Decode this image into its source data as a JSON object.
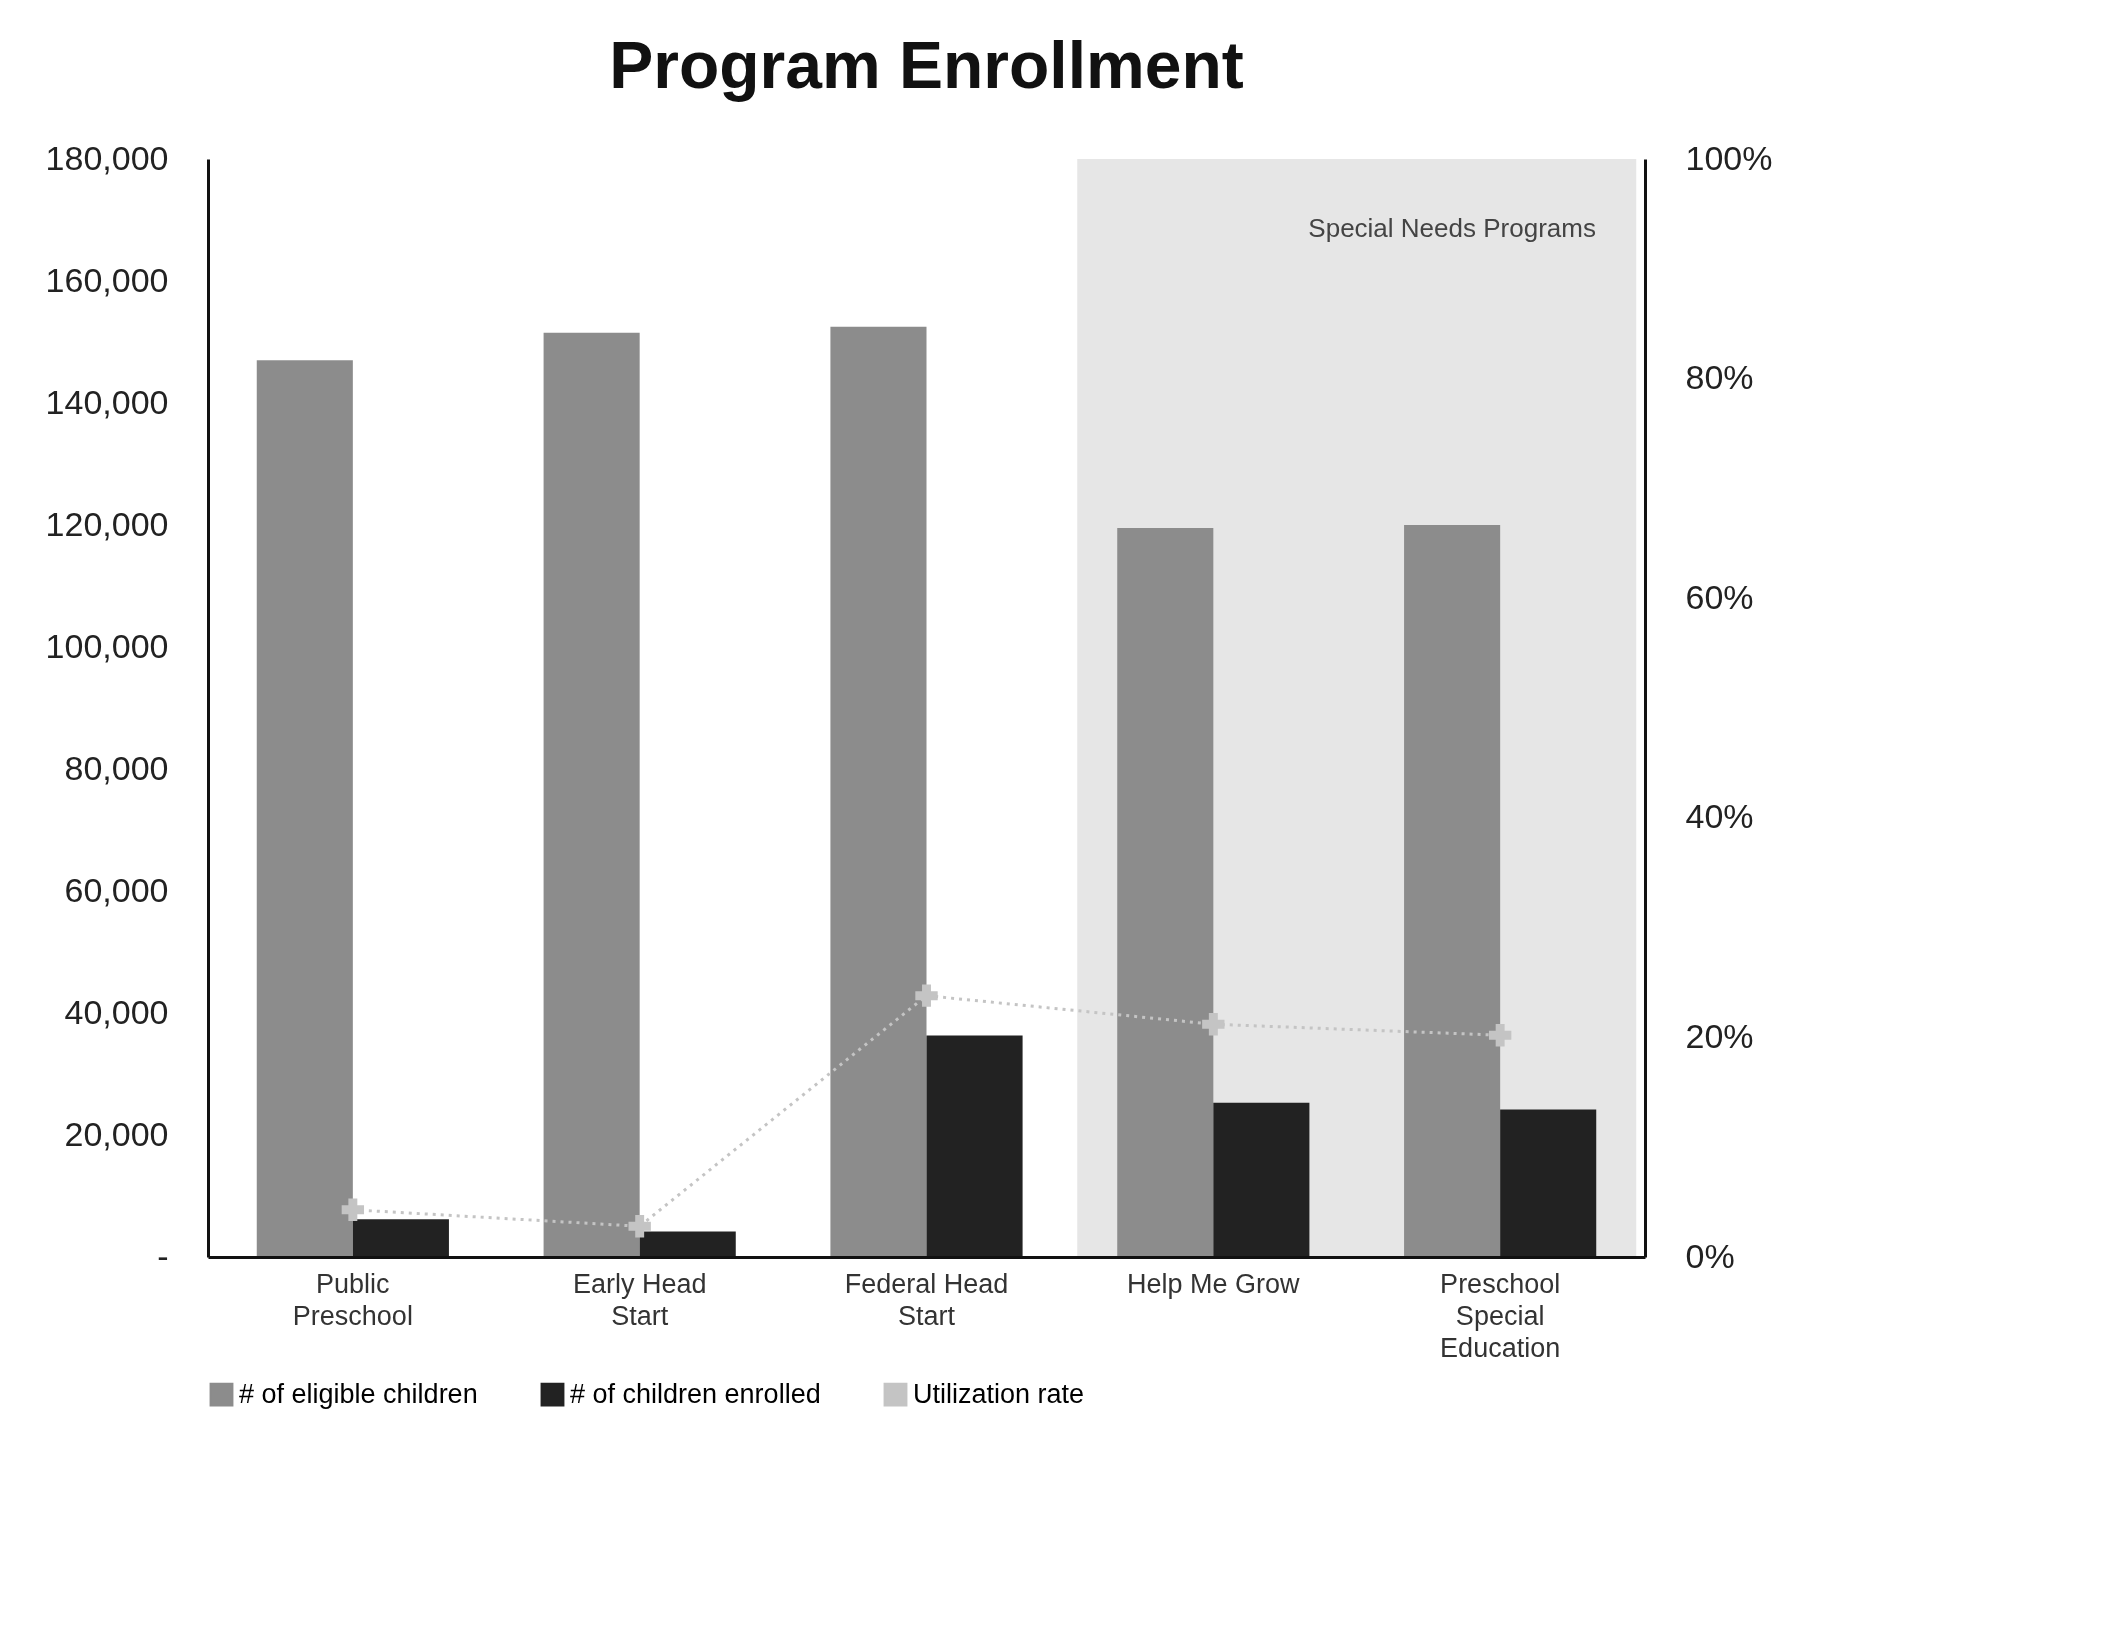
{
  "chart_data": {
    "type": "bar",
    "title": "Program Enrollment",
    "categories": [
      "Public Preschool",
      "Early Head Start",
      "Federal Head Start",
      "Help Me Grow",
      "Preschool Special Education"
    ],
    "series": [
      {
        "name": "# of eligible children",
        "color": "#8c8c8c",
        "values": [
          147000,
          151500,
          152500,
          119500,
          120000
        ]
      },
      {
        "name": "# of children enrolled",
        "color": "#222222",
        "values": [
          6200,
          4200,
          36300,
          25300,
          24200
        ]
      },
      {
        "name": "Utilization rate",
        "type": "line",
        "axis": "y2",
        "color": "#c4c4c4",
        "marker": "cross",
        "line_style": "dotted",
        "values": [
          4.3,
          2.8,
          23.8,
          21.2,
          20.2
        ]
      }
    ],
    "ylim": [
      0,
      180000
    ],
    "yticks": [
      {
        "value": 0,
        "label": "-"
      },
      {
        "value": 20000,
        "label": "20,000"
      },
      {
        "value": 40000,
        "label": "40,000"
      },
      {
        "value": 60000,
        "label": "60,000"
      },
      {
        "value": 80000,
        "label": "80,000"
      },
      {
        "value": 100000,
        "label": "100,000"
      },
      {
        "value": 120000,
        "label": "120,000"
      },
      {
        "value": 140000,
        "label": "140,000"
      },
      {
        "value": 160000,
        "label": "160,000"
      },
      {
        "value": 180000,
        "label": "180,000"
      }
    ],
    "y2lim": [
      0,
      100
    ],
    "y2ticks": [
      {
        "value": 0,
        "label": "0%"
      },
      {
        "value": 20,
        "label": "20%"
      },
      {
        "value": 40,
        "label": "40%"
      },
      {
        "value": 60,
        "label": "60%"
      },
      {
        "value": 80,
        "label": "80%"
      },
      {
        "value": 100,
        "label": "100%"
      }
    ],
    "bands": [
      {
        "axis": "x",
        "from": "Help Me Grow",
        "to": "Preschool Special Education",
        "label": "Special Needs Programs",
        "color": "#e6e6e6"
      }
    ],
    "grid": false,
    "legend": "bottom"
  }
}
